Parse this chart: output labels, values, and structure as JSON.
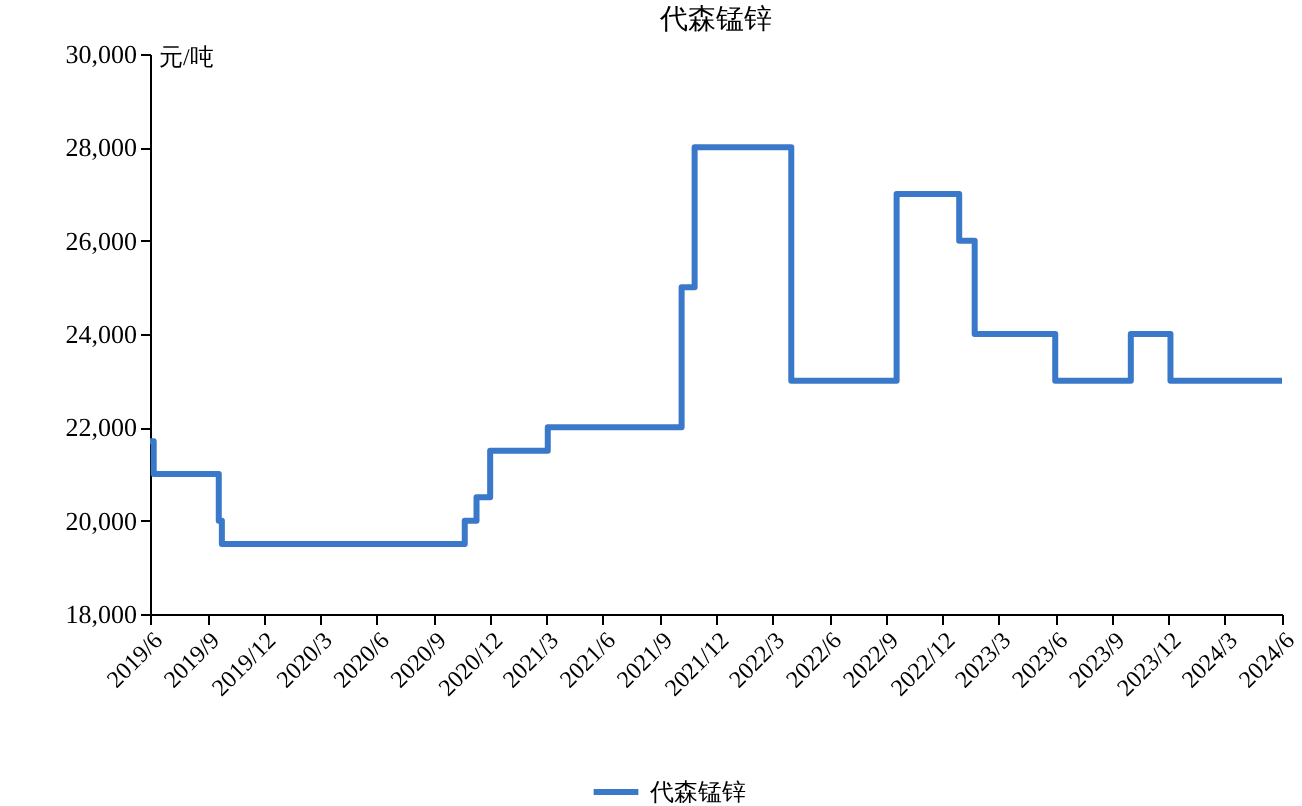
{
  "chart_data": {
    "type": "step",
    "title": "代森锰锌",
    "ylabel": "元/吨",
    "x": [
      "2019-06-01",
      "2019-06-07",
      "2019-09-20",
      "2019-09-25",
      "2020-10-21",
      "2020-11-09",
      "2020-12-01",
      "2021-03-04",
      "2021-10-06",
      "2021-10-27",
      "2022-04-01",
      "2022-09-18",
      "2022-12-28",
      "2023-01-22",
      "2023-06-01",
      "2023-10-01",
      "2023-12-04",
      "2024-06-01"
    ],
    "series": [
      {
        "name": "代森锰锌",
        "color": "#3a78c9",
        "values": [
          21700,
          21000,
          20000,
          19500,
          20000,
          20500,
          21500,
          22000,
          25000,
          28000,
          23000,
          27000,
          26000,
          24000,
          23000,
          24000,
          23000,
          23000
        ]
      }
    ],
    "ylim": [
      18000,
      30000
    ],
    "yticks": [
      {
        "value": 18000,
        "label": "18,000"
      },
      {
        "value": 20000,
        "label": "20,000"
      },
      {
        "value": 22000,
        "label": "22,000"
      },
      {
        "value": 24000,
        "label": "24,000"
      },
      {
        "value": 26000,
        "label": "26,000"
      },
      {
        "value": 28000,
        "label": "28,000"
      },
      {
        "value": 30000,
        "label": "30,000"
      }
    ],
    "xlim": [
      "2019-06-01",
      "2024-06-01"
    ],
    "xticks": [
      {
        "value": "2019-06-01",
        "label": "2019/6"
      },
      {
        "value": "2019-09-01",
        "label": "2019/9"
      },
      {
        "value": "2019-12-01",
        "label": "2019/12"
      },
      {
        "value": "2020-03-01",
        "label": "2020/3"
      },
      {
        "value": "2020-06-01",
        "label": "2020/6"
      },
      {
        "value": "2020-09-01",
        "label": "2020/9"
      },
      {
        "value": "2020-12-01",
        "label": "2020/12"
      },
      {
        "value": "2021-03-01",
        "label": "2021/3"
      },
      {
        "value": "2021-06-01",
        "label": "2021/6"
      },
      {
        "value": "2021-09-01",
        "label": "2021/9"
      },
      {
        "value": "2021-12-01",
        "label": "2021/12"
      },
      {
        "value": "2022-03-01",
        "label": "2022/3"
      },
      {
        "value": "2022-06-01",
        "label": "2022/6"
      },
      {
        "value": "2022-09-01",
        "label": "2022/9"
      },
      {
        "value": "2022-12-01",
        "label": "2022/12"
      },
      {
        "value": "2023-03-01",
        "label": "2023/3"
      },
      {
        "value": "2023-06-01",
        "label": "2023/6"
      },
      {
        "value": "2023-09-01",
        "label": "2023/9"
      },
      {
        "value": "2023-12-01",
        "label": "2023/12"
      },
      {
        "value": "2024-03-01",
        "label": "2024/3"
      },
      {
        "value": "2024-06-01",
        "label": "2024/6"
      }
    ],
    "legend": "bottom",
    "grid": false
  }
}
